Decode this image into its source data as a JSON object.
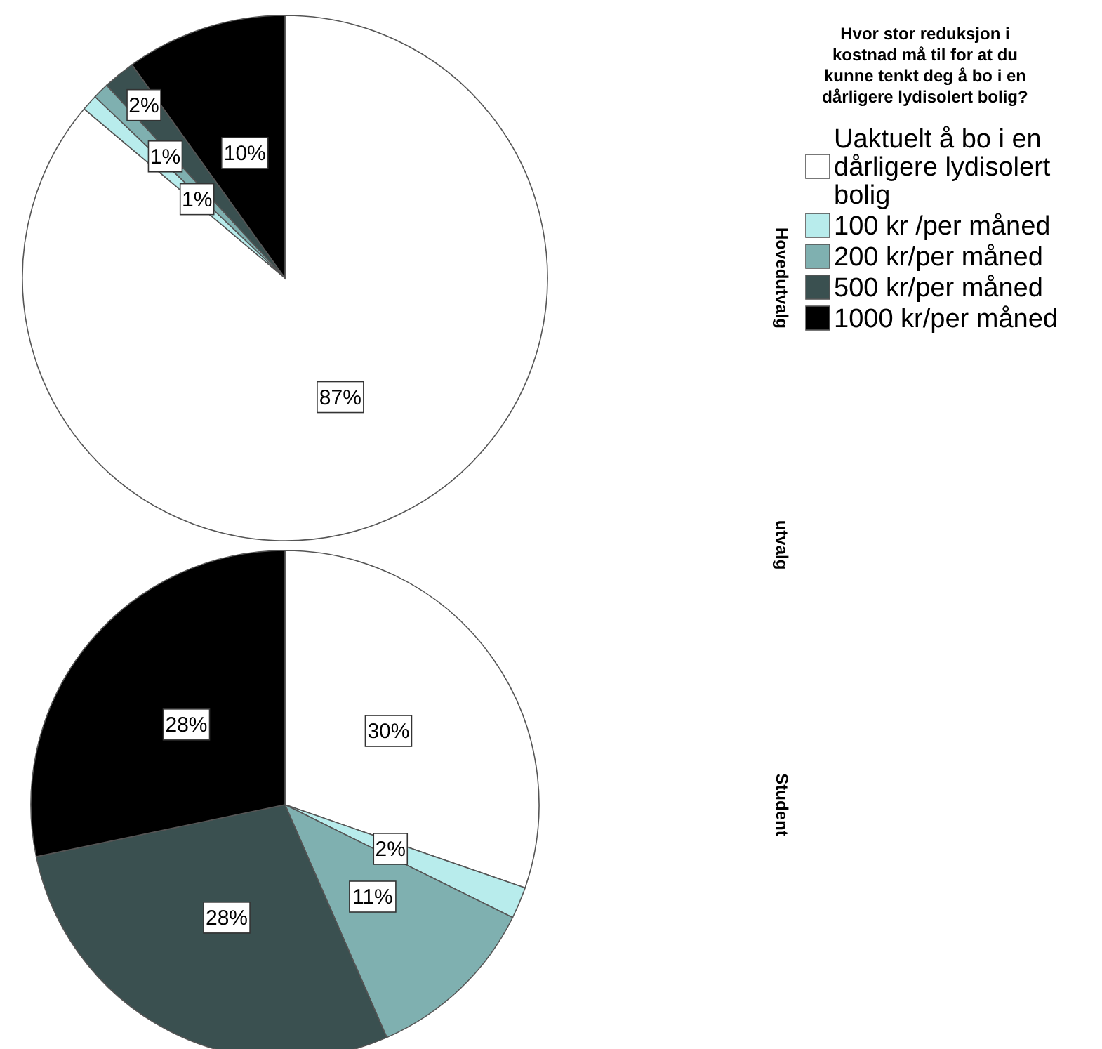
{
  "chart_data": {
    "type": "pie",
    "legend_title": "Hvor stor reduksjon i kostnad må til for at du kunne tenkt deg å bo i en dårligere lydisolert bolig?",
    "ylabel": "utvalg",
    "categories": [
      "Uaktuelt å bo i en dårligere lydisolert bolig",
      "100 kr /per måned",
      "200 kr/per måned",
      "500 kr/per måned",
      "1000 kr/per måned"
    ],
    "colors": [
      "#ffffff",
      "#b8ecec",
      "#7fb0b0",
      "#3a5050",
      "#000000"
    ],
    "legend": "right",
    "series": [
      {
        "name": "Hovedutvalg",
        "values": [
          87,
          1,
          1,
          2,
          10
        ],
        "value_labels": [
          "87%",
          "1%",
          "1%",
          "2%",
          "10%"
        ]
      },
      {
        "name": "Student",
        "values": [
          30,
          2,
          11,
          28,
          28
        ],
        "value_labels": [
          "30%",
          "2%",
          "11%",
          "28%",
          "28%"
        ]
      }
    ]
  }
}
